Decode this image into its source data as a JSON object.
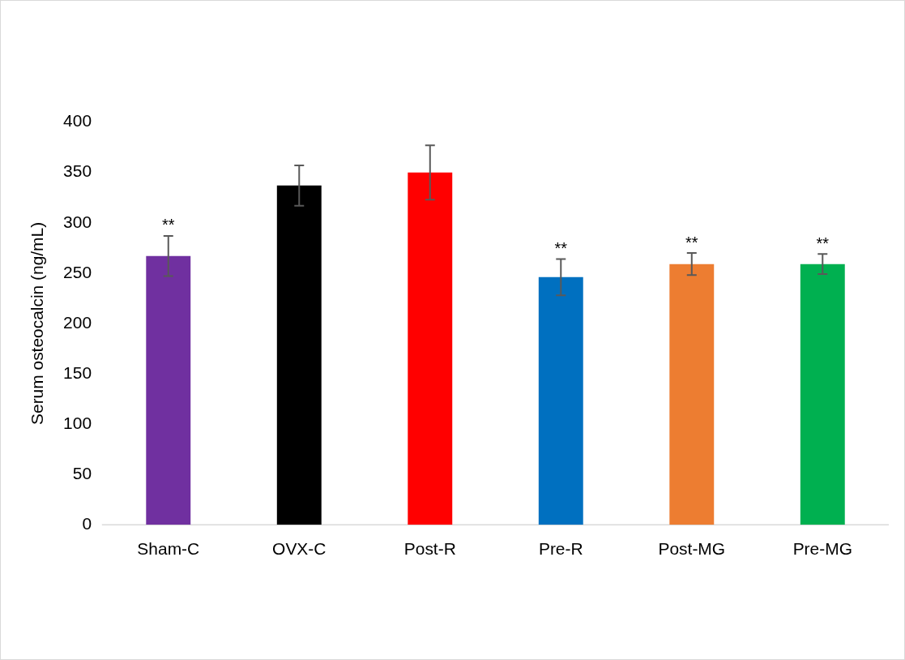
{
  "chart_data": {
    "type": "bar",
    "ylabel": "Serum osteocalcin (ng/mL)",
    "categories": [
      "Sham-C",
      "OVX-C",
      "Post-R",
      "Pre-R",
      "Post-MG",
      "Pre-MG"
    ],
    "values": [
      267,
      337,
      350,
      246,
      259,
      259
    ],
    "colors": [
      "#7030a0",
      "#000000",
      "#ff0000",
      "#0070c0",
      "#ed7d31",
      "#00b050"
    ],
    "errors": [
      20,
      20,
      27,
      18,
      11,
      10
    ],
    "ylim": [
      0,
      400
    ],
    "yticks": [
      0,
      50,
      100,
      150,
      200,
      250,
      300,
      350,
      400
    ],
    "grid": false,
    "legend": false,
    "annotations": [
      {
        "text": "**",
        "x": "Sham-C",
        "y": 287
      },
      {
        "text": "**",
        "x": "Pre-R",
        "y": 264
      },
      {
        "text": "**",
        "x": "Post-MG",
        "y": 270
      },
      {
        "text": "**",
        "x": "Pre-MG",
        "y": 269
      }
    ]
  }
}
